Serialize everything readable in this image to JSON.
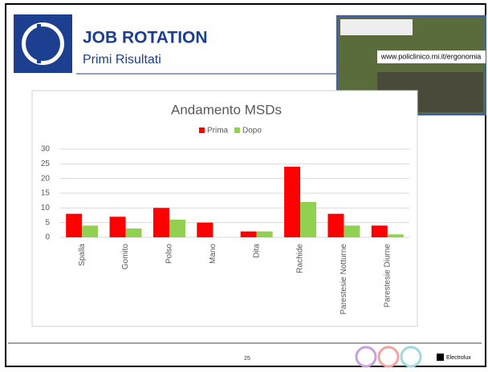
{
  "header": {
    "title": "JOB ROTATION",
    "subtitle": "Primi Risultati",
    "url": "www.policlinico.mi.it/ergonomia"
  },
  "chart_data": {
    "type": "bar",
    "title": "Andamento MSDs",
    "categories": [
      "Spalla",
      "Gomito",
      "Polso",
      "Mano",
      "Dita",
      "Rachide",
      "Parestesie Notturne",
      "Parestesie Diurne"
    ],
    "series": [
      {
        "name": "Prima",
        "color": "#ff0000",
        "values": [
          8,
          7,
          10,
          5,
          2,
          24,
          8,
          4
        ]
      },
      {
        "name": "Dopo",
        "color": "#92d050",
        "values": [
          4,
          3,
          6,
          0,
          2,
          12,
          4,
          1
        ]
      }
    ],
    "ylim": [
      0,
      30
    ],
    "yticks": [
      0,
      5,
      10,
      15,
      20,
      25,
      30
    ],
    "grid": true
  },
  "footer": {
    "page": "25",
    "brand": "Electrolux"
  }
}
